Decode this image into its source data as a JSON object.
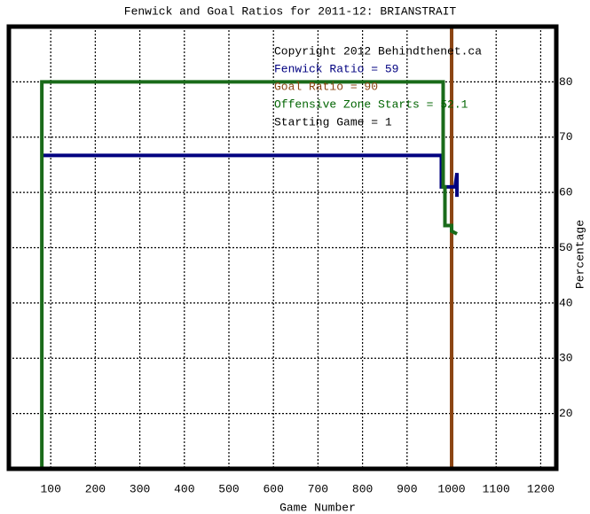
{
  "chart_data": {
    "type": "line",
    "title": "Fenwick and Goal Ratios for 2011-12: BRIANSTRAIT",
    "x_label": "Game Number",
    "y_label": "Percentage",
    "xlim": [
      6,
      1235
    ],
    "xticks": [
      100,
      200,
      300,
      400,
      500,
      600,
      700,
      800,
      900,
      1000,
      1100,
      1200
    ],
    "ylim": [
      10,
      90
    ],
    "yticks": [
      20,
      30,
      40,
      50,
      60,
      70,
      80
    ],
    "grid": true,
    "annotations": [
      {
        "text": "Copyright 2012 Behindthenet.ca",
        "color": "#000000"
      },
      {
        "text": "Fenwick Ratio = 59",
        "color": "#000080"
      },
      {
        "text": "Goal Ratio = 90",
        "color": "#8b4513"
      },
      {
        "text": "Offensive Zone Starts = 52.1",
        "color": "#006400"
      },
      {
        "text": "Starting Game = 1",
        "color": "#000000"
      }
    ],
    "series": [
      {
        "color": "#8b4513",
        "x": [
          1000,
          1000
        ],
        "values": [
          10,
          90
        ]
      },
      {
        "color": "#000080",
        "x": [
          80,
          977,
          977,
          1008,
          1012,
          1012
        ],
        "values": [
          66.7,
          66.7,
          61,
          61,
          63.5,
          59.2
        ]
      },
      {
        "color": "#1a6b1a",
        "x": [
          80,
          80,
          981,
          981,
          985,
          985,
          1000,
          1000,
          1012
        ],
        "values": [
          10,
          80,
          80,
          61,
          61,
          54,
          54,
          53,
          52.5
        ]
      }
    ]
  }
}
